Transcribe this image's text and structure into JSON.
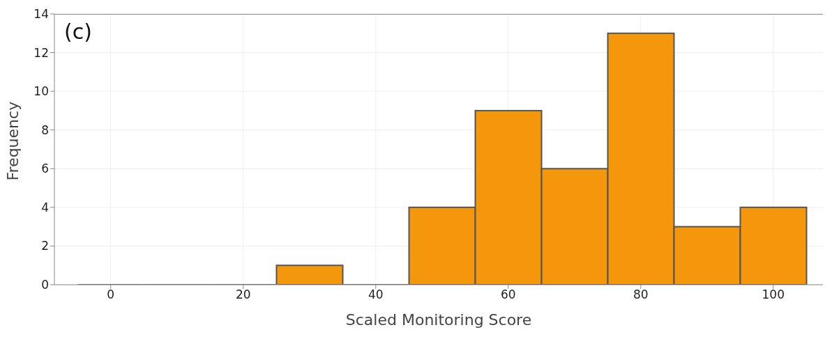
{
  "chart_data": {
    "type": "histogram",
    "xlabel": "Scaled Monitoring Score",
    "ylabel": "Frequency",
    "bins": [
      -5,
      5,
      15,
      25,
      35,
      45,
      55,
      65,
      75,
      85,
      95,
      105
    ],
    "values": [
      0,
      0,
      0,
      1,
      0,
      4,
      9,
      6,
      13,
      3,
      4
    ],
    "color": "#f5970b",
    "xlim": [
      -8.5,
      107.5
    ],
    "xticks": [
      0,
      20,
      40,
      60,
      80,
      100
    ],
    "ylim": [
      0,
      14
    ],
    "yticks": [
      0,
      2,
      4,
      6,
      8,
      10,
      12,
      14
    ],
    "grid": true,
    "annotations": [
      "(c)"
    ]
  }
}
